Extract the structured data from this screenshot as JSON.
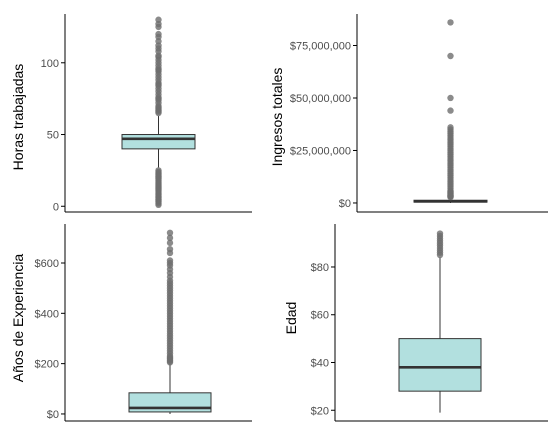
{
  "chart_data": [
    {
      "type": "boxplot",
      "ylabel": "Horas trabajadas",
      "yticks": [
        0,
        50,
        100
      ],
      "ytick_labels": [
        "0",
        "50",
        "100"
      ],
      "ylim": [
        -4,
        134
      ],
      "box": {
        "min": 27,
        "q1": 40,
        "median": 47,
        "q3": 50,
        "max": 63
      },
      "outliers_low": [
        1,
        2,
        3,
        4,
        5,
        6,
        7,
        8,
        9,
        10,
        11,
        12,
        13,
        14,
        15,
        16,
        17,
        18,
        19,
        20,
        21,
        22,
        23,
        24,
        25
      ],
      "outliers_high": [
        65,
        66,
        67,
        68,
        69,
        70,
        72,
        74,
        75,
        76,
        78,
        80,
        82,
        84,
        85,
        86,
        88,
        90,
        92,
        94,
        95,
        96,
        98,
        100,
        102,
        104,
        105,
        108,
        110,
        112,
        115,
        118,
        120,
        125,
        127,
        130
      ],
      "grid": false
    },
    {
      "type": "boxplot",
      "ylabel": "Ingresos totales",
      "yticks": [
        0,
        25000000,
        50000000,
        75000000
      ],
      "ytick_labels": [
        "$0",
        "$25,000,000",
        "$50,000,000",
        "$75,000,000"
      ],
      "ylim": [
        -4300000,
        90000000
      ],
      "box": {
        "min": 0,
        "q1": 400000,
        "median": 800000,
        "q3": 1300000,
        "max": 2600000
      },
      "outliers_high": [
        2800000,
        3000000,
        3300000,
        3600000,
        4000000,
        4500000,
        5000000,
        5500000,
        6000000,
        7000000,
        8000000,
        9000000,
        10000000,
        11000000,
        12000000,
        13000000,
        14000000,
        15000000,
        16000000,
        17000000,
        18000000,
        19000000,
        20000000,
        21000000,
        22000000,
        23000000,
        24000000,
        25000000,
        26000000,
        27000000,
        28000000,
        29000000,
        30000000,
        31000000,
        32000000,
        33000000,
        34000000,
        35000000,
        36000000,
        44000000,
        50000000,
        70000000,
        86000000
      ],
      "grid": false
    },
    {
      "type": "boxplot",
      "ylabel": "Años de Experiencia",
      "yticks": [
        0,
        200,
        400,
        600
      ],
      "ytick_labels": [
        "$0",
        "$200",
        "$400",
        "$600"
      ],
      "ylim": [
        -28,
        755
      ],
      "box": {
        "min": 0,
        "q1": 8,
        "median": 24,
        "q3": 84,
        "max": 200
      },
      "outliers_high": [
        205,
        210,
        215,
        220,
        225,
        230,
        240,
        250,
        260,
        270,
        280,
        290,
        300,
        310,
        320,
        330,
        340,
        350,
        360,
        370,
        380,
        390,
        400,
        410,
        420,
        430,
        440,
        450,
        460,
        470,
        480,
        490,
        500,
        510,
        520,
        530,
        545,
        560,
        575,
        590,
        600,
        610,
        640,
        655,
        680,
        700,
        720
      ],
      "grid": false
    },
    {
      "type": "boxplot",
      "ylabel": "Edad",
      "yticks": [
        20,
        40,
        60,
        80
      ],
      "ytick_labels": [
        "$20",
        "$40",
        "$60",
        "$80"
      ],
      "ylim": [
        15.5,
        98
      ],
      "box": {
        "min": 19,
        "q1": 28,
        "median": 38,
        "q3": 50,
        "max": 84
      },
      "outliers_high": [
        85,
        86,
        87,
        88,
        89,
        90,
        91,
        92,
        93,
        94
      ],
      "grid": false
    }
  ],
  "colors": {
    "box_fill": "#b2e0df",
    "outline": "#333333",
    "outlier": "#6e6e6e",
    "axis": "#000000",
    "tick_text": "#4d4d4d"
  }
}
